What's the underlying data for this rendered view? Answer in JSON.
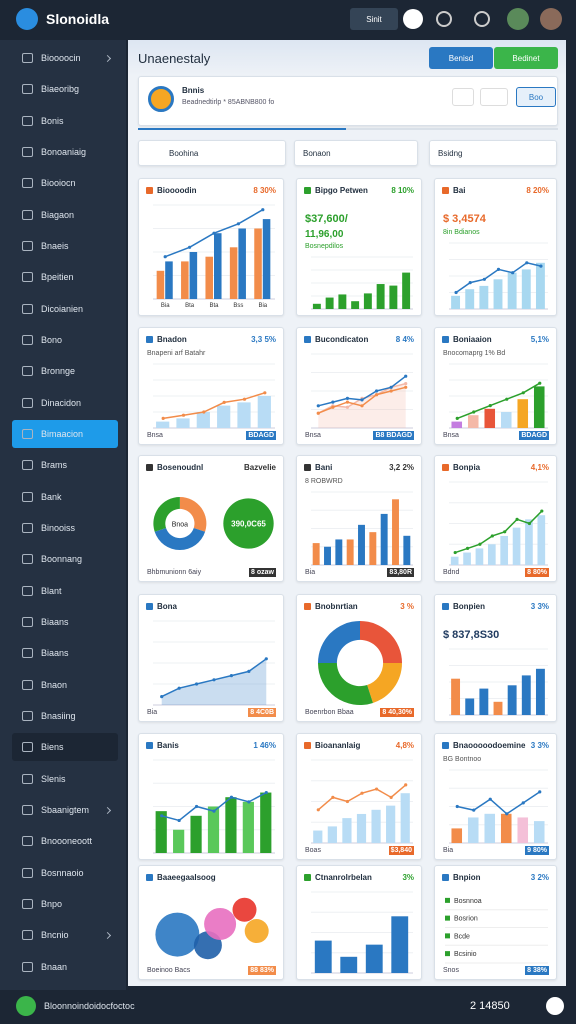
{
  "topbar": {
    "app_name": "Slonoidla",
    "button": "Sinit"
  },
  "sidebar": {
    "items": [
      {
        "label": "Bioooocin",
        "has_submenu": true
      },
      {
        "label": "Biaeoribg"
      },
      {
        "label": "Bonis"
      },
      {
        "label": "Bonoaniaig"
      },
      {
        "label": "Biooiocn"
      },
      {
        "label": "Biagaon"
      },
      {
        "label": "Bnaeis"
      },
      {
        "label": "Bpeitien"
      },
      {
        "label": "Dicoianien"
      },
      {
        "label": "Bono"
      },
      {
        "label": "Bronnge"
      },
      {
        "label": "Dinacidon"
      },
      {
        "label": "Bimaacion",
        "active": true
      },
      {
        "label": "Brams"
      },
      {
        "label": "Bank"
      },
      {
        "label": "Binooiss"
      },
      {
        "label": "Boonnang"
      },
      {
        "label": "Blant"
      },
      {
        "label": "Biaans"
      },
      {
        "label": "Biaans"
      },
      {
        "label": "Bnaon"
      },
      {
        "label": "Bnasiing"
      },
      {
        "label": "Biens",
        "highlighted": true
      },
      {
        "label": "Slenis"
      },
      {
        "label": "Sbaanigtem",
        "has_submenu": true
      },
      {
        "label": "Bnoooneoott"
      },
      {
        "label": "Bosnnaoio"
      },
      {
        "label": "Bnpo"
      },
      {
        "label": "Bncnio",
        "has_submenu": true
      },
      {
        "label": "Bnaan"
      }
    ]
  },
  "header": {
    "title": "Unaenestaly",
    "primary_button": "Benisd",
    "secondary_button": "Bedinet"
  },
  "profile": {
    "name": "Bnnis",
    "subtitle": "Beadnedtirlp * 85ABNB800 fo",
    "button": "Boo"
  },
  "filters": [
    "Boohina",
    "Bonaon",
    "Bsidng"
  ],
  "cards": [
    {
      "title": "Bioooodin",
      "badge": "8 30%",
      "badge_color": "#e8692a",
      "categories": [
        "Bia",
        "Bta",
        "Bta",
        "Bss",
        "Bia"
      ],
      "chart": {
        "type": "combo",
        "ylim": [
          0,
          100
        ],
        "series": [
          {
            "kind": "bar",
            "color": "#f28c4a",
            "values": [
              30,
              40,
              45,
              55,
              75
            ]
          },
          {
            "kind": "bar",
            "color": "#2a78c2",
            "values": [
              40,
              50,
              70,
              75,
              85
            ]
          },
          {
            "kind": "line",
            "color": "#2a78c2",
            "values": [
              45,
              55,
              70,
              80,
              95
            ]
          }
        ]
      }
    },
    {
      "title": "Bipgo Petwen",
      "badge": "8 10%",
      "badge_color": "#2ca02c",
      "value": "$37,600/",
      "value2": "11,96,00",
      "value_color": "#2ca02c",
      "legend": "Bosnepdilos",
      "chart": {
        "type": "combo",
        "ylim": [
          0,
          100
        ],
        "series": [
          {
            "kind": "bar",
            "color": "#2ca02c",
            "values": [
              10,
              22,
              28,
              15,
              30,
              48,
              45,
              70
            ]
          }
        ]
      }
    },
    {
      "title": "Bai",
      "badge": "8 20%",
      "badge_color": "#e8692a",
      "value": "$ 3,4574",
      "value_color": "#e8692a",
      "legend": "8in Bdianos",
      "chart": {
        "type": "combo",
        "ylim": [
          0,
          100
        ],
        "series": [
          {
            "kind": "bar",
            "color": "#a8d8f0",
            "values": [
              20,
              30,
              35,
              45,
              55,
              60,
              70
            ]
          },
          {
            "kind": "line",
            "color": "#2a78c2",
            "values": [
              25,
              40,
              45,
              60,
              55,
              70,
              65
            ]
          }
        ]
      }
    },
    {
      "title": "Bnadon",
      "badge": "3,3 5%",
      "badge_color": "#2a78c2",
      "subtitle": "Bnapeni arf Batahr",
      "footer": [
        "Bnsa",
        "BDAGD"
      ],
      "chart": {
        "type": "combo",
        "ylim": [
          0,
          100
        ],
        "series": [
          {
            "kind": "bar",
            "color": "#b8dcf5",
            "values": [
              10,
              15,
              25,
              35,
              40,
              50
            ]
          },
          {
            "kind": "line",
            "color": "#f28c4a",
            "values": [
              15,
              20,
              25,
              40,
              45,
              55
            ]
          }
        ]
      }
    },
    {
      "title": "Bucondicaton",
      "badge": "8 4%",
      "badge_color": "#2a78c2",
      "footer": [
        "Bnsa",
        "B8 BDAGD"
      ],
      "chart": {
        "type": "combo",
        "ylim": [
          0,
          100
        ],
        "series": [
          {
            "kind": "area",
            "color": "#f4b8a8",
            "values": [
              20,
              30,
              28,
              40,
              45,
              55,
              60
            ]
          },
          {
            "kind": "line",
            "color": "#2a78c2",
            "values": [
              30,
              35,
              40,
              38,
              50,
              55,
              70
            ]
          },
          {
            "kind": "line",
            "color": "#f28c4a",
            "values": [
              20,
              28,
              35,
              30,
              45,
              50,
              55
            ]
          }
        ]
      }
    },
    {
      "title": "Boniaaion",
      "badge": "5,1%",
      "badge_color": "#2a78c2",
      "subtitle": "Bnocomaprg 1% Bd",
      "footer": [
        "Bnsa",
        "BDAGD"
      ],
      "chart": {
        "type": "combo",
        "ylim": [
          0,
          100
        ],
        "series": [
          {
            "kind": "bar",
            "colors": [
              "#c47de0",
              "#f4b8a8",
              "#e8553a",
              "#b8dcf5",
              "#f5a623",
              "#2ca02c"
            ],
            "values": [
              10,
              20,
              30,
              25,
              45,
              65
            ]
          },
          {
            "kind": "line",
            "color": "#2ca02c",
            "values": [
              15,
              25,
              35,
              45,
              55,
              70
            ]
          }
        ]
      }
    },
    {
      "title": "Bosenoudnl",
      "badge": "Bazvelie",
      "badge_color": "#333333",
      "center_label": "Bnoa",
      "side_value": "390,0C65",
      "footer": [
        "Bhbmunionn 6aiy",
        "8 ozaw"
      ],
      "chart": {
        "type": "donut",
        "values": [
          30,
          40,
          30
        ],
        "colors": [
          "#f28c4a",
          "#2a78c2",
          "#2ca02c"
        ]
      }
    },
    {
      "title": "Bani",
      "badge": "3,2 2%",
      "badge_color": "#333333",
      "subtitle": "8 ROBWRD",
      "footer": [
        "Bia",
        "83,80R"
      ],
      "chart": {
        "type": "combo",
        "ylim": [
          0,
          100
        ],
        "series": [
          {
            "kind": "bar",
            "colors": [
              "#f28c4a",
              "#2a78c2",
              "#2a78c2",
              "#f28c4a",
              "#2a78c2",
              "#f28c4a",
              "#2a78c2",
              "#f28c4a",
              "#2a78c2"
            ],
            "values": [
              30,
              25,
              35,
              35,
              55,
              45,
              70,
              90,
              40
            ]
          }
        ]
      }
    },
    {
      "title": "Bonpia",
      "badge": "4,1%",
      "badge_color": "#e8692a",
      "footer": [
        "Bdnd",
        "8 80%"
      ],
      "chart": {
        "type": "combo",
        "ylim": [
          0,
          100
        ],
        "series": [
          {
            "kind": "bar",
            "color": "#b8dcf5",
            "values": [
              10,
              15,
              20,
              25,
              35,
              45,
              55,
              60
            ]
          },
          {
            "kind": "line",
            "color": "#2ca02c",
            "values": [
              15,
              20,
              25,
              35,
              40,
              55,
              50,
              65
            ]
          }
        ]
      }
    },
    {
      "title": "Bona",
      "footer": [
        "Bia",
        "8 4C0B"
      ],
      "chart": {
        "type": "combo",
        "ylim": [
          0,
          100
        ],
        "series": [
          {
            "kind": "area",
            "color": "#2a78c2",
            "values": [
              10,
              20,
              25,
              30,
              35,
              40,
              55
            ]
          }
        ]
      }
    },
    {
      "title": "Bnobnrtian",
      "badge": "3 %",
      "badge_color": "#e8692a",
      "footer": [
        "Boenrbon Bbaa",
        "8 40,30%"
      ],
      "chart": {
        "type": "donut",
        "values": [
          25,
          20,
          30,
          25
        ],
        "colors": [
          "#e8553a",
          "#f5a623",
          "#2ca02c",
          "#2a78c2"
        ]
      }
    },
    {
      "title": "Bonpien",
      "badge": "3 3%",
      "badge_color": "#2a78c2",
      "value": "$ 837,8S30",
      "value_color": "#1f3a5f",
      "chart": {
        "type": "combo",
        "ylim": [
          0,
          100
        ],
        "series": [
          {
            "kind": "bar",
            "colors": [
              "#f28c4a",
              "#2a78c2",
              "#2a78c2",
              "#f28c4a",
              "#2a78c2",
              "#2a78c2",
              "#2a78c2"
            ],
            "values": [
              55,
              25,
              40,
              20,
              45,
              60,
              70
            ]
          }
        ]
      }
    },
    {
      "title": "Banis",
      "badge": "1 46%",
      "badge_color": "#2a78c2",
      "chart": {
        "type": "combo",
        "ylim": [
          0,
          100
        ],
        "series": [
          {
            "kind": "bar",
            "colors": [
              "#2ca02c",
              "#5ac85a",
              "#2ca02c",
              "#5ac85a",
              "#2ca02c",
              "#5ac85a",
              "#2ca02c"
            ],
            "values": [
              45,
              25,
              40,
              50,
              60,
              55,
              65
            ]
          },
          {
            "kind": "line",
            "color": "#2a78c2",
            "values": [
              40,
              35,
              50,
              45,
              60,
              55,
              65
            ]
          }
        ]
      }
    },
    {
      "title": "Bioananlaig",
      "badge": "4,8%",
      "badge_color": "#e8692a",
      "footer": [
        "Boas",
        "$3,840"
      ],
      "chart": {
        "type": "combo",
        "ylim": [
          0,
          100
        ],
        "series": [
          {
            "kind": "bar",
            "color": "#b8dcf5",
            "values": [
              15,
              20,
              30,
              35,
              40,
              45,
              60
            ]
          },
          {
            "kind": "line",
            "color": "#f28c4a",
            "values": [
              40,
              55,
              50,
              60,
              65,
              55,
              70
            ]
          }
        ]
      }
    },
    {
      "title": "Bnaooooodoemine",
      "badge": "3 3%",
      "badge_color": "#2a78c2",
      "subtitle": "BG Bontnoo",
      "footer": [
        "Bia",
        "9 80%"
      ],
      "chart": {
        "type": "combo",
        "ylim": [
          0,
          100
        ],
        "series": [
          {
            "kind": "bar",
            "colors": [
              "#f28c4a",
              "#b8dcf5",
              "#b8dcf5",
              "#f28c4a",
              "#f4c0d8",
              "#b8dcf5"
            ],
            "values": [
              20,
              35,
              40,
              40,
              35,
              30
            ]
          },
          {
            "kind": "line",
            "color": "#2a78c2",
            "values": [
              50,
              45,
              60,
              40,
              55,
              70
            ]
          }
        ]
      }
    },
    {
      "title": "Baaeegaalsoog",
      "footer": [
        "Boeinoo Bacs",
        "88 83%"
      ],
      "chart": {
        "type": "bubbles",
        "values": [
          22,
          14,
          16,
          12,
          12
        ],
        "colors": [
          "#2a78c2",
          "#1f5fa8",
          "#e86fc0",
          "#e8332a",
          "#f5a623"
        ]
      }
    },
    {
      "title": "Ctnanrolrbelan",
      "badge": "3%",
      "badge_color": "#2ca02c",
      "chart": {
        "type": "combo",
        "ylim": [
          0,
          100
        ],
        "series": [
          {
            "kind": "bar",
            "color": "#2a78c2",
            "values": [
              40,
              20,
              35,
              70
            ]
          }
        ]
      }
    },
    {
      "title": "Bnpion",
      "badge": "3 2%",
      "badge_color": "#2a78c2",
      "footer": [
        "Snos",
        "8 38%"
      ],
      "chart": {
        "type": "list",
        "items": [
          "Bosnnoa",
          "Bosrion",
          "Bcde",
          "Bcsinio"
        ]
      }
    }
  ],
  "footer": {
    "text": "Bloonnoindoidocfoctoc",
    "code": "2 14850"
  }
}
